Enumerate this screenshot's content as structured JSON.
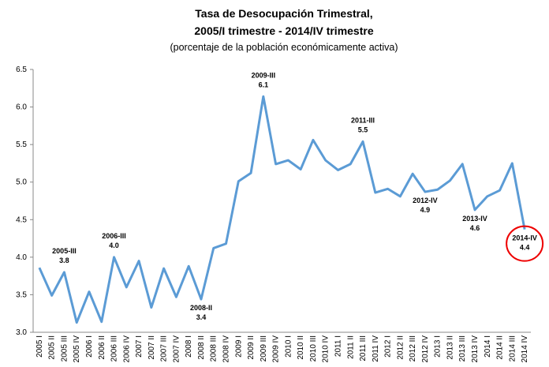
{
  "chart_data": {
    "type": "line",
    "title": "Tasa de Desocupación Trimestral,",
    "title_line2": "2005/I trimestre - 2014/IV trimestre",
    "subtitle": "(porcentaje de la población económicamente activa)",
    "categories": [
      "2005 I",
      "2005 II",
      "2005 III",
      "2005 IV",
      "2006 I",
      "2006 II",
      "2006 III",
      "2006 IV",
      "2007 I",
      "2007 II",
      "2007 III",
      "2007 IV",
      "2008 I",
      "2008 II",
      "2008 III",
      "2008 IV",
      "2009 I",
      "2009 II",
      "2009 III",
      "2009 IV",
      "2010 I",
      "2010 II",
      "2010 III",
      "2010 IV",
      "2011 I",
      "2011 II",
      "2011 III",
      "2011 IV",
      "2012 I",
      "2012 II",
      "2012 III",
      "2012 IV",
      "2013 I",
      "2013 II",
      "2013 III",
      "2013 IV",
      "2014 I",
      "2014 II",
      "2014 III",
      "2014 IV"
    ],
    "values": [
      3.86,
      3.49,
      3.8,
      3.13,
      3.54,
      3.14,
      4.0,
      3.6,
      3.95,
      3.33,
      3.85,
      3.47,
      3.88,
      3.44,
      4.12,
      4.18,
      5.01,
      5.12,
      6.14,
      5.24,
      5.29,
      5.17,
      5.56,
      5.29,
      5.16,
      5.24,
      5.54,
      4.86,
      4.91,
      4.81,
      5.11,
      4.87,
      4.9,
      5.02,
      5.24,
      4.63,
      4.81,
      4.89,
      5.25,
      4.37
    ],
    "point_labels": [
      null,
      null,
      "2005-III",
      null,
      null,
      null,
      "2006-III",
      null,
      null,
      null,
      null,
      null,
      null,
      "2008-II",
      null,
      null,
      null,
      null,
      "2009-III",
      null,
      null,
      null,
      null,
      null,
      null,
      null,
      "2011-III",
      null,
      null,
      null,
      null,
      "2012-IV",
      null,
      null,
      null,
      "2013-IV",
      null,
      null,
      null,
      "2014-IV"
    ],
    "value_labels": [
      null,
      null,
      "3.8",
      null,
      null,
      null,
      "4.0",
      null,
      null,
      null,
      null,
      null,
      null,
      "3.4",
      null,
      null,
      null,
      null,
      "6.1",
      null,
      null,
      null,
      null,
      null,
      null,
      null,
      "5.5",
      null,
      null,
      null,
      null,
      "4.9",
      null,
      null,
      null,
      "4.6",
      null,
      null,
      null,
      "4.4"
    ],
    "color": "#5b9bd5",
    "ylim": [
      3.0,
      6.5
    ],
    "yticks": [
      {
        "value": 3.0,
        "label": "3.0"
      },
      3.5,
      {
        "value": 4.0,
        "label": "4.0"
      },
      4.5,
      {
        "value": 5.0,
        "label": "5.0"
      },
      5.5,
      {
        "value": 6.0,
        "label": "6.0"
      },
      6.5
    ],
    "grid": false
  }
}
